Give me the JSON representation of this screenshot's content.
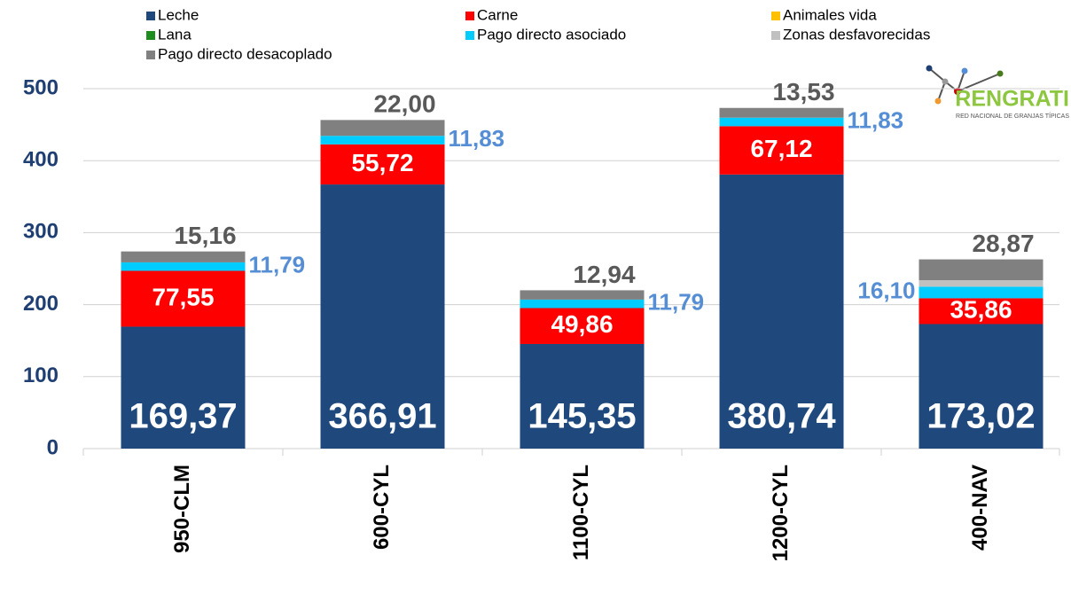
{
  "chart_data": {
    "type": "stacked_bar",
    "categories": [
      "950-CLM",
      "600-CYL",
      "1100-CYL",
      "1200-CYL",
      "400-NAV"
    ],
    "series": [
      {
        "name": "Leche",
        "color": "#1f497d",
        "label_color": "#ffffff",
        "values": [
          169.37,
          366.91,
          145.35,
          380.74,
          173.02
        ],
        "value_labels": [
          "169,37",
          "366,91",
          "145,35",
          "380,74",
          "173,02"
        ]
      },
      {
        "name": "Carne",
        "color": "#ff0000",
        "label_color": "#ffffff",
        "values": [
          77.55,
          55.72,
          49.86,
          67.12,
          35.86
        ],
        "value_labels": [
          "77,55",
          "55,72",
          "49,86",
          "67,12",
          "35,86"
        ]
      },
      {
        "name": "Animales vida",
        "color": "#ffc000",
        "values": [
          0,
          0,
          0,
          0,
          0
        ]
      },
      {
        "name": "Lana",
        "color": "#1e8c1e",
        "values": [
          0,
          0,
          0,
          0,
          0
        ]
      },
      {
        "name": "Pago directo asociado",
        "color": "#00ccff",
        "label_color": "#558ed5",
        "values": [
          11.79,
          11.83,
          11.79,
          11.83,
          16.1
        ],
        "value_labels": [
          "11,79",
          "11,83",
          "11,79",
          "11,83",
          "16,10"
        ]
      },
      {
        "name": "Zonas desfavorecidas",
        "color": "#c0c0c0",
        "values": [
          0,
          0,
          0,
          0,
          9
        ]
      },
      {
        "name": "Pago directo desacoplado",
        "color": "#808080",
        "label_color": "#595959",
        "values": [
          15.16,
          22.0,
          12.94,
          13.53,
          28.87
        ],
        "value_labels": [
          "15,16",
          "22,00",
          "12,94",
          "13,53",
          "28,87"
        ]
      }
    ],
    "ylim": [
      0,
      500
    ],
    "yticks": [
      0,
      100,
      200,
      300,
      400,
      500
    ],
    "grid": true
  },
  "logo": {
    "title": "RENGRATI",
    "subtitle": "RED NACIONAL DE GRANJAS TÍPICAS"
  }
}
